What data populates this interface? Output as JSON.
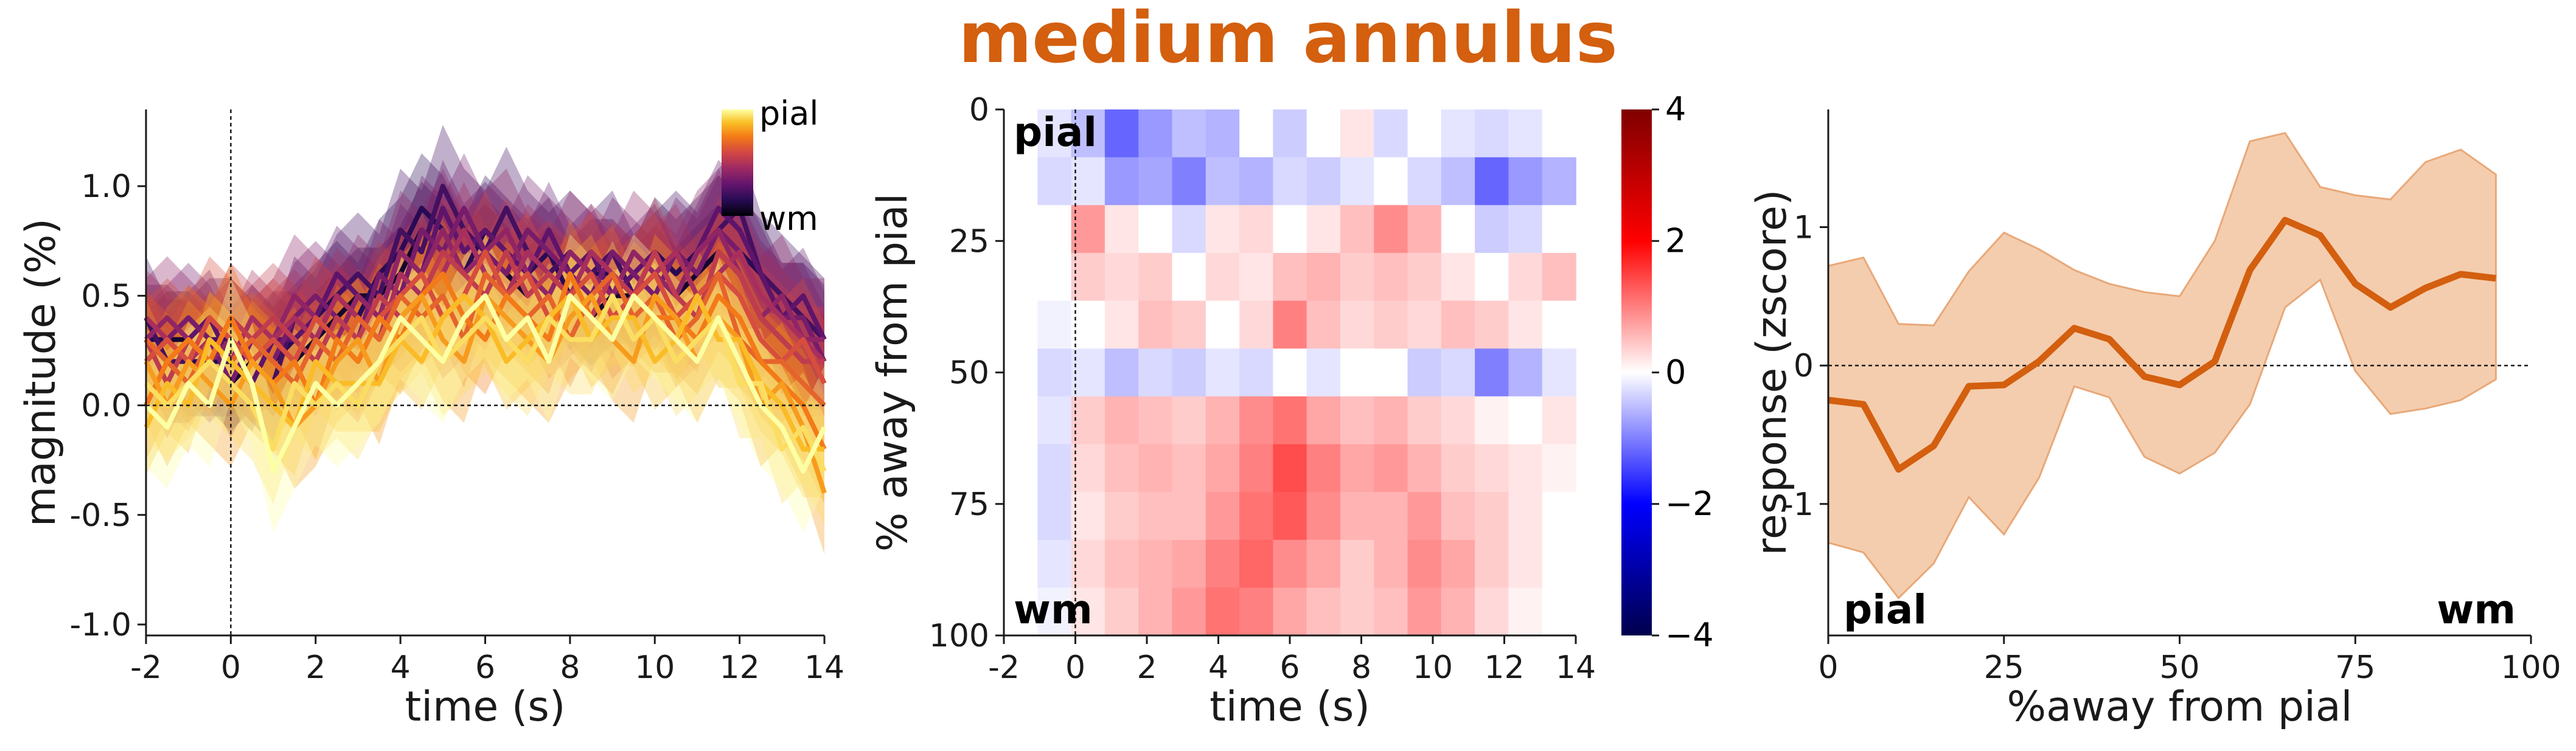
{
  "figure_title": "medium annulus",
  "colors": {
    "accent": "#d35f0f",
    "accent_band": "#f2c4a0",
    "depth_colormap": "inferno",
    "heatmap_colormap": "seismic"
  },
  "chart_data": [
    {
      "id": "timecourses",
      "type": "line",
      "title": "",
      "xlabel": "time (s)",
      "ylabel": "magnitude (%)",
      "xlim": [
        -2,
        14
      ],
      "ylim": [
        -1.05,
        1.35
      ],
      "xticks": [
        "-2",
        "0",
        "2",
        "4",
        "6",
        "8",
        "10",
        "12",
        "14"
      ],
      "yticks": [
        "1.0",
        "0.5",
        "0.0",
        "-0.5",
        "-1.0"
      ],
      "legend": {
        "type": "colorbar",
        "position": "top-right",
        "top_label": "pial",
        "bottom_label": "wm"
      },
      "vline_x": 0,
      "hline_y": 0,
      "shaded_error": true,
      "x": [
        -2,
        -1.5,
        -1,
        -0.5,
        0,
        0.5,
        1,
        1.5,
        2,
        2.5,
        3,
        3.5,
        4,
        4.5,
        5,
        5.5,
        6,
        6.5,
        7,
        7.5,
        8,
        8.5,
        9,
        9.5,
        10,
        10.5,
        11,
        11.5,
        12,
        12.5,
        13,
        13.5,
        14
      ],
      "series": [
        {
          "depth": 0.0,
          "values": [
            0.0,
            -0.1,
            0.1,
            0.0,
            0.3,
            0.1,
            -0.3,
            -0.1,
            0.1,
            0.0,
            0.1,
            0.2,
            0.4,
            0.3,
            0.2,
            0.4,
            0.5,
            0.3,
            0.4,
            0.2,
            0.5,
            0.4,
            0.3,
            0.5,
            0.4,
            0.3,
            0.2,
            0.4,
            0.2,
            0.0,
            -0.1,
            -0.3,
            -0.1
          ]
        },
        {
          "depth": 0.07,
          "values": [
            0.1,
            0.0,
            0.1,
            0.2,
            0.1,
            0.0,
            -0.2,
            0.1,
            0.0,
            0.1,
            0.0,
            0.2,
            0.3,
            0.4,
            0.2,
            0.3,
            0.4,
            0.3,
            0.2,
            0.4,
            0.3,
            0.3,
            0.5,
            0.3,
            0.4,
            0.2,
            0.3,
            0.4,
            0.1,
            0.1,
            -0.2,
            -0.1,
            -0.3
          ]
        },
        {
          "depth": 0.14,
          "values": [
            -0.1,
            0.1,
            0.0,
            0.3,
            0.2,
            0.1,
            0.0,
            -0.1,
            0.2,
            0.1,
            0.1,
            0.1,
            0.3,
            0.2,
            0.4,
            0.5,
            0.4,
            0.2,
            0.3,
            0.4,
            0.5,
            0.3,
            0.4,
            0.4,
            0.2,
            0.3,
            0.5,
            0.3,
            0.3,
            0.1,
            0.0,
            -0.2,
            -0.2
          ]
        },
        {
          "depth": 0.21,
          "values": [
            0.2,
            0.0,
            0.2,
            0.1,
            0.0,
            0.2,
            0.1,
            -0.1,
            0.0,
            0.2,
            0.3,
            0.1,
            0.4,
            0.5,
            0.3,
            0.2,
            0.5,
            0.4,
            0.3,
            0.2,
            0.4,
            0.5,
            0.3,
            0.2,
            0.5,
            0.4,
            0.2,
            0.4,
            0.3,
            0.0,
            0.1,
            -0.1,
            -0.4
          ]
        },
        {
          "depth": 0.28,
          "values": [
            0.0,
            0.2,
            0.3,
            0.2,
            0.4,
            0.2,
            0.1,
            0.2,
            0.0,
            0.3,
            0.2,
            0.4,
            0.3,
            0.5,
            0.6,
            0.4,
            0.3,
            0.5,
            0.4,
            0.3,
            0.6,
            0.4,
            0.3,
            0.5,
            0.4,
            0.4,
            0.3,
            0.5,
            0.4,
            0.2,
            0.1,
            0.0,
            -0.2
          ]
        },
        {
          "depth": 0.35,
          "values": [
            0.3,
            0.2,
            0.1,
            0.3,
            0.2,
            0.3,
            0.2,
            0.1,
            0.3,
            0.2,
            0.4,
            0.3,
            0.5,
            0.4,
            0.5,
            0.3,
            0.6,
            0.5,
            0.4,
            0.5,
            0.3,
            0.5,
            0.6,
            0.4,
            0.5,
            0.3,
            0.4,
            0.6,
            0.3,
            0.2,
            0.2,
            0.1,
            0.0
          ]
        },
        {
          "depth": 0.42,
          "values": [
            0.2,
            0.3,
            0.2,
            0.4,
            0.3,
            0.2,
            0.3,
            0.2,
            0.4,
            0.3,
            0.2,
            0.4,
            0.5,
            0.6,
            0.4,
            0.5,
            0.7,
            0.5,
            0.6,
            0.4,
            0.5,
            0.6,
            0.4,
            0.5,
            0.6,
            0.4,
            0.5,
            0.6,
            0.5,
            0.3,
            0.2,
            0.3,
            0.1
          ]
        },
        {
          "depth": 0.5,
          "values": [
            0.3,
            0.1,
            0.3,
            0.2,
            0.4,
            0.3,
            0.4,
            0.3,
            0.2,
            0.4,
            0.3,
            0.5,
            0.4,
            0.5,
            0.7,
            0.6,
            0.5,
            0.7,
            0.5,
            0.6,
            0.5,
            0.4,
            0.6,
            0.5,
            0.7,
            0.5,
            0.4,
            0.7,
            0.6,
            0.4,
            0.3,
            0.2,
            0.2
          ]
        },
        {
          "depth": 0.57,
          "values": [
            0.4,
            0.3,
            0.2,
            0.3,
            0.2,
            0.4,
            0.3,
            0.4,
            0.3,
            0.5,
            0.4,
            0.3,
            0.6,
            0.5,
            0.6,
            0.8,
            0.6,
            0.5,
            0.7,
            0.6,
            0.5,
            0.7,
            0.6,
            0.5,
            0.6,
            0.7,
            0.5,
            0.6,
            0.7,
            0.5,
            0.4,
            0.3,
            0.2
          ]
        },
        {
          "depth": 0.64,
          "values": [
            0.3,
            0.4,
            0.3,
            0.2,
            0.3,
            0.2,
            0.3,
            0.5,
            0.4,
            0.3,
            0.5,
            0.4,
            0.7,
            0.6,
            0.8,
            0.6,
            0.7,
            0.8,
            0.6,
            0.5,
            0.7,
            0.6,
            0.5,
            0.7,
            0.6,
            0.5,
            0.7,
            0.8,
            0.6,
            0.4,
            0.5,
            0.3,
            0.3
          ]
        },
        {
          "depth": 0.71,
          "values": [
            0.2,
            0.3,
            0.4,
            0.3,
            0.1,
            0.3,
            0.2,
            0.4,
            0.5,
            0.4,
            0.3,
            0.6,
            0.5,
            0.8,
            0.7,
            0.9,
            0.7,
            0.6,
            0.8,
            0.7,
            0.6,
            0.5,
            0.7,
            0.6,
            0.5,
            0.7,
            0.6,
            0.8,
            0.7,
            0.5,
            0.4,
            0.4,
            0.2
          ]
        },
        {
          "depth": 0.78,
          "values": [
            0.3,
            0.2,
            0.3,
            0.4,
            0.2,
            0.1,
            0.3,
            0.3,
            0.4,
            0.6,
            0.5,
            0.4,
            0.7,
            0.6,
            0.9,
            0.7,
            0.8,
            0.7,
            0.6,
            0.8,
            0.6,
            0.7,
            0.5,
            0.6,
            0.7,
            0.5,
            0.7,
            0.9,
            0.8,
            0.6,
            0.4,
            0.5,
            0.3
          ]
        },
        {
          "depth": 0.85,
          "values": [
            0.4,
            0.2,
            0.2,
            0.3,
            0.3,
            0.2,
            0.1,
            0.4,
            0.3,
            0.5,
            0.6,
            0.5,
            0.8,
            0.7,
            1.0,
            0.8,
            0.7,
            0.9,
            0.7,
            0.6,
            0.7,
            0.6,
            0.7,
            0.5,
            0.6,
            0.7,
            0.6,
            0.8,
            0.9,
            0.6,
            0.5,
            0.4,
            0.3
          ]
        },
        {
          "depth": 0.92,
          "values": [
            0.3,
            0.3,
            0.2,
            0.2,
            0.2,
            0.3,
            0.2,
            0.3,
            0.4,
            0.5,
            0.4,
            0.6,
            0.7,
            0.9,
            0.8,
            0.6,
            0.8,
            0.7,
            0.6,
            0.7,
            0.5,
            0.6,
            0.6,
            0.5,
            0.7,
            0.6,
            0.7,
            0.8,
            0.7,
            0.6,
            0.4,
            0.4,
            0.3
          ]
        },
        {
          "depth": 1.0,
          "values": [
            0.2,
            0.3,
            0.3,
            0.2,
            0.1,
            0.2,
            0.3,
            0.2,
            0.3,
            0.4,
            0.5,
            0.5,
            0.6,
            0.8,
            0.7,
            0.6,
            0.7,
            0.6,
            0.5,
            0.6,
            0.5,
            0.4,
            0.5,
            0.5,
            0.6,
            0.5,
            0.6,
            0.7,
            0.6,
            0.4,
            0.3,
            0.2,
            0.2
          ]
        }
      ]
    },
    {
      "id": "heatmap",
      "type": "heatmap",
      "title": "",
      "xlabel": "time (s)",
      "ylabel": "% away from pial",
      "xlim": [
        -2,
        14
      ],
      "ylim": [
        100,
        0
      ],
      "xticks": [
        "-2",
        "0",
        "2",
        "4",
        "6",
        "8",
        "10",
        "12",
        "14"
      ],
      "yticks": [
        "0",
        "25",
        "50",
        "75",
        "100"
      ],
      "vline_x": 0,
      "annotations": [
        {
          "text": "pial",
          "position": "top-left"
        },
        {
          "text": "wm",
          "position": "bottom-left"
        }
      ],
      "colorbar": {
        "position": "right",
        "vmin": -4,
        "vmax": 4,
        "ticks": [
          "4",
          "2",
          "0",
          "−2",
          "−4"
        ]
      },
      "x": [
        -2,
        -1,
        0,
        1,
        2,
        3,
        4,
        5,
        6,
        7,
        8,
        9,
        10,
        11,
        12,
        13,
        14
      ],
      "y": [
        0,
        10,
        20,
        30,
        40,
        50,
        60,
        70,
        80,
        90,
        100
      ],
      "z": [
        [
          0.0,
          -0.2,
          -0.5,
          -1.2,
          -0.8,
          -0.5,
          -0.6,
          0.0,
          -0.4,
          0.0,
          0.2,
          -0.3,
          0.0,
          -0.2,
          -0.3,
          -0.2,
          0.0
        ],
        [
          0.0,
          -0.3,
          -0.2,
          -0.8,
          -0.7,
          -1.0,
          -0.5,
          -0.6,
          -0.3,
          -0.4,
          -0.2,
          0.0,
          -0.3,
          -0.5,
          -1.2,
          -0.8,
          -0.6
        ],
        [
          0.0,
          0.0,
          0.8,
          0.2,
          0.0,
          -0.3,
          0.2,
          0.3,
          0.0,
          0.2,
          0.5,
          0.9,
          0.6,
          0.0,
          -0.4,
          -0.3,
          0.0
        ],
        [
          0.0,
          0.0,
          0.4,
          0.3,
          0.4,
          0.0,
          0.3,
          0.2,
          0.5,
          0.6,
          0.4,
          0.5,
          0.4,
          0.2,
          0.0,
          0.3,
          0.5
        ],
        [
          0.0,
          -0.1,
          0.0,
          0.2,
          0.5,
          0.4,
          0.0,
          0.3,
          1.0,
          0.5,
          0.3,
          0.4,
          0.3,
          0.5,
          0.4,
          0.2,
          0.0
        ],
        [
          0.0,
          -0.3,
          -0.2,
          -0.5,
          -0.3,
          -0.4,
          -0.2,
          -0.3,
          0.0,
          -0.2,
          0.0,
          0.0,
          -0.4,
          -0.3,
          -1.0,
          -0.6,
          -0.2
        ],
        [
          0.0,
          -0.2,
          0.4,
          0.6,
          0.5,
          0.4,
          0.6,
          0.9,
          1.1,
          0.7,
          0.5,
          0.6,
          0.4,
          0.3,
          0.1,
          0.0,
          0.2
        ],
        [
          0.0,
          -0.3,
          0.3,
          0.5,
          0.6,
          0.5,
          0.7,
          1.0,
          1.4,
          1.0,
          0.7,
          0.8,
          0.6,
          0.4,
          0.3,
          0.2,
          0.1
        ],
        [
          0.0,
          -0.3,
          0.2,
          0.4,
          0.5,
          0.5,
          0.8,
          1.1,
          1.3,
          0.9,
          0.6,
          0.6,
          0.8,
          0.5,
          0.4,
          0.2,
          0.0
        ],
        [
          0.0,
          -0.2,
          0.3,
          0.5,
          0.6,
          0.7,
          1.0,
          1.2,
          0.9,
          0.7,
          0.4,
          0.6,
          0.9,
          0.7,
          0.4,
          0.2,
          0.0
        ],
        [
          0.0,
          -0.1,
          0.2,
          0.4,
          0.6,
          0.8,
          1.1,
          1.0,
          0.7,
          0.5,
          0.4,
          0.5,
          0.8,
          0.6,
          0.3,
          0.1,
          0.0
        ]
      ]
    },
    {
      "id": "depth_profile",
      "type": "line",
      "title": "",
      "xlabel": "%away from pial",
      "ylabel": "response (zscore)",
      "xlim": [
        0,
        100
      ],
      "ylim": [
        -1.95,
        1.85
      ],
      "xticks": [
        "0",
        "25",
        "50",
        "75",
        "100"
      ],
      "yticks": [
        "1",
        "0",
        "-1"
      ],
      "hline_y": 0,
      "annotations": [
        {
          "text": "pial",
          "position": "bottom-left"
        },
        {
          "text": "wm",
          "position": "bottom-right"
        }
      ],
      "x": [
        0,
        5,
        10,
        15,
        20,
        25,
        30,
        35,
        40,
        45,
        50,
        55,
        60,
        65,
        70,
        75,
        80,
        85,
        90,
        95
      ],
      "values": [
        -0.25,
        -0.28,
        -0.75,
        -0.58,
        -0.15,
        -0.14,
        0.03,
        0.27,
        0.19,
        -0.08,
        -0.14,
        0.03,
        0.69,
        1.05,
        0.94,
        0.59,
        0.42,
        0.56,
        0.66,
        0.63
      ],
      "upper": [
        0.72,
        0.78,
        0.3,
        0.29,
        0.68,
        0.96,
        0.84,
        0.69,
        0.59,
        0.53,
        0.5,
        0.9,
        1.62,
        1.68,
        1.29,
        1.23,
        1.2,
        1.47,
        1.56,
        1.38
      ],
      "lower": [
        -1.28,
        -1.35,
        -1.68,
        -1.43,
        -0.95,
        -1.22,
        -0.81,
        -0.15,
        -0.23,
        -0.66,
        -0.78,
        -0.63,
        -0.28,
        0.42,
        0.62,
        -0.04,
        -0.35,
        -0.31,
        -0.25,
        -0.1
      ]
    }
  ]
}
